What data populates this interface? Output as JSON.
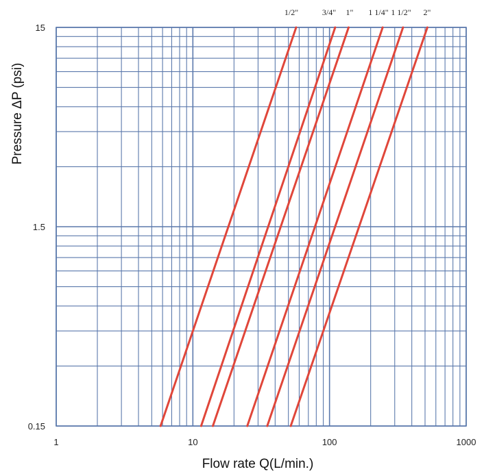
{
  "chart_data": {
    "type": "line",
    "xlabel": "Flow rate Q(L/min.)",
    "ylabel": "Pressure  ΔP (psi)",
    "x_scale": "log",
    "y_scale": "log",
    "xlim": [
      1,
      1000
    ],
    "ylim": [
      0.15,
      15
    ],
    "x_ticks": [
      "1",
      "10",
      "100",
      "1000"
    ],
    "y_ticks": [
      "0.15",
      "1.5",
      "15"
    ],
    "grid": true,
    "colors": {
      "grid": "#5b79ac",
      "line": "#e0463a"
    },
    "series": [
      {
        "name": "1/2\"",
        "x": [
          5.8,
          57
        ],
        "y": [
          0.15,
          15
        ]
      },
      {
        "name": "3/4\"",
        "x": [
          11.5,
          110
        ],
        "y": [
          0.15,
          15
        ]
      },
      {
        "name": "1\"",
        "x": [
          14,
          138
        ],
        "y": [
          0.15,
          15
        ]
      },
      {
        "name": "1 1/4\"",
        "x": [
          25,
          245
        ],
        "y": [
          0.15,
          15
        ]
      },
      {
        "name": "1 1/2\"",
        "x": [
          35,
          345
        ],
        "y": [
          0.15,
          15
        ]
      },
      {
        "name": "2\"",
        "x": [
          52,
          520
        ],
        "y": [
          0.15,
          15
        ]
      }
    ]
  }
}
